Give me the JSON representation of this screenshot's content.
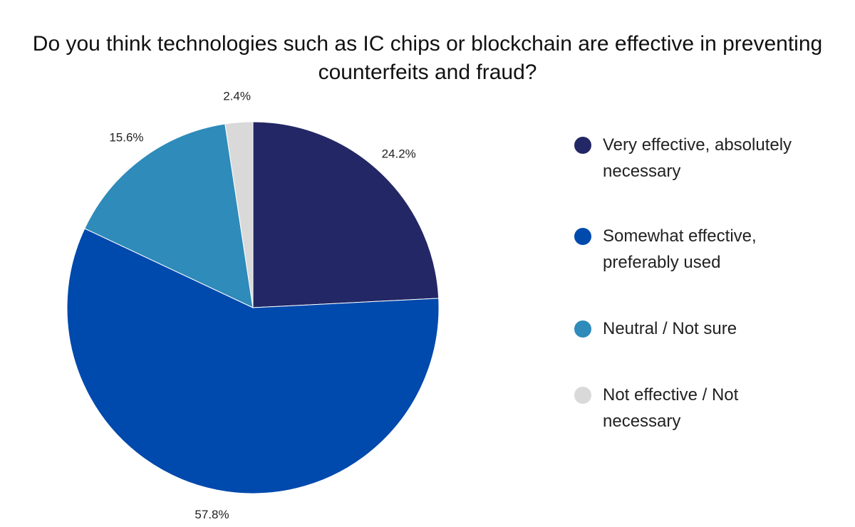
{
  "chart_data": {
    "type": "pie",
    "title": "Do you think technologies such as IC chips or blockchain are effective in preventing counterfeits and fraud?",
    "categories": [
      "Very effective, absolutely necessary",
      "Somewhat effective, preferably used",
      "Neutral / Not sure",
      "Not effective / Not necessary"
    ],
    "values": [
      24.2,
      57.8,
      15.6,
      2.4
    ],
    "value_labels": [
      "24.2%",
      "57.8%",
      "15.6%",
      "2.4%"
    ],
    "colors": [
      "#232765",
      "#0049ad",
      "#2e8bba",
      "#d9d9d9"
    ],
    "legend": "right"
  }
}
